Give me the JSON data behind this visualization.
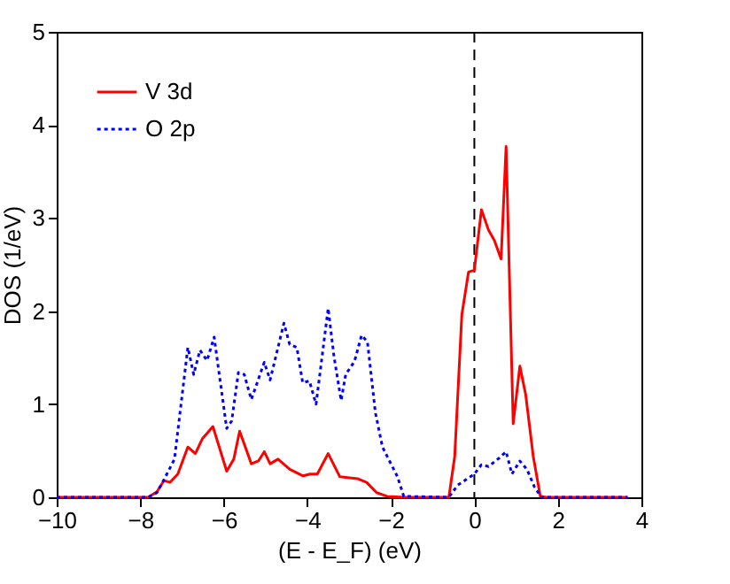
{
  "chart_data": {
    "type": "line",
    "xlabel": "(E - E_F) (eV)",
    "ylabel": "DOS (1/eV)",
    "xlim": [
      -10,
      4
    ],
    "ylim": [
      0,
      5
    ],
    "xticks": [
      -10,
      -8,
      -6,
      -4,
      -2,
      0,
      2,
      4
    ],
    "yticks": [
      0,
      1,
      2,
      3,
      4,
      5
    ],
    "grid": false,
    "legend": "top left",
    "marker": "none",
    "ref_lines": [
      {
        "axis": "x",
        "value": 0,
        "color": "#000000",
        "line_style": "dashed"
      }
    ],
    "series": [
      {
        "name": "V 3d",
        "color": "#ff0000",
        "line_style": "solid",
        "x": [
          -10,
          -7.81,
          -7.6,
          -7.43,
          -7.29,
          -7.1,
          -6.86,
          -6.68,
          -6.51,
          -6.26,
          -5.93,
          -5.76,
          -5.62,
          -5.34,
          -5.17,
          -5.03,
          -4.89,
          -4.7,
          -4.42,
          -4.1,
          -3.93,
          -3.76,
          -3.5,
          -3.22,
          -2.8,
          -2.58,
          -2.34,
          -2.09,
          -1.67,
          -0.61,
          -0.47,
          -0.3,
          -0.14,
          0,
          0.17,
          0.34,
          0.48,
          0.64,
          0.76,
          0.93,
          1.09,
          1.23,
          1.41,
          1.58,
          1.72,
          3.67
        ],
        "values": [
          0,
          0,
          0.06,
          0.18,
          0.16,
          0.25,
          0.54,
          0.47,
          0.63,
          0.76,
          0.28,
          0.41,
          0.71,
          0.36,
          0.39,
          0.49,
          0.36,
          0.41,
          0.3,
          0.23,
          0.25,
          0.25,
          0.47,
          0.22,
          0.2,
          0.16,
          0.05,
          0.01,
          0,
          0,
          0.44,
          1.96,
          2.42,
          2.44,
          3.09,
          2.87,
          2.76,
          2.56,
          3.77,
          0.79,
          1.41,
          1.1,
          0.44,
          0.01,
          0,
          0
        ]
      },
      {
        "name": "O 2p",
        "color": "#0000ff",
        "line_style": "dotted",
        "x": [
          -10,
          -7.81,
          -7.6,
          -7.43,
          -7.18,
          -6.86,
          -6.72,
          -6.57,
          -6.4,
          -6.23,
          -5.93,
          -5.81,
          -5.65,
          -5.51,
          -5.34,
          -5.03,
          -4.89,
          -4.56,
          -4.42,
          -4.25,
          -4.11,
          -3.95,
          -3.79,
          -3.5,
          -3.36,
          -3.19,
          -3.08,
          -2.87,
          -2.7,
          -2.56,
          -2.37,
          -2.2,
          -2.02,
          -1.84,
          -1.69,
          -0.61,
          -0.4,
          0,
          0.17,
          0.34,
          0.59,
          0.76,
          0.9,
          1.09,
          1.26,
          1.44,
          1.61,
          3.67
        ],
        "values": [
          0,
          0,
          0.05,
          0.19,
          0.41,
          1.61,
          1.32,
          1.58,
          1.47,
          1.72,
          0.74,
          0.82,
          1.34,
          1.32,
          1.05,
          1.45,
          1.26,
          1.87,
          1.64,
          1.61,
          1.23,
          1.25,
          1.0,
          2.03,
          1.51,
          1.04,
          1.32,
          1.46,
          1.74,
          1.67,
          0.91,
          0.54,
          0.38,
          0.22,
          0.01,
          0,
          0.13,
          0.25,
          0.35,
          0.33,
          0.42,
          0.49,
          0.25,
          0.39,
          0.3,
          0.11,
          0,
          0
        ]
      }
    ]
  }
}
